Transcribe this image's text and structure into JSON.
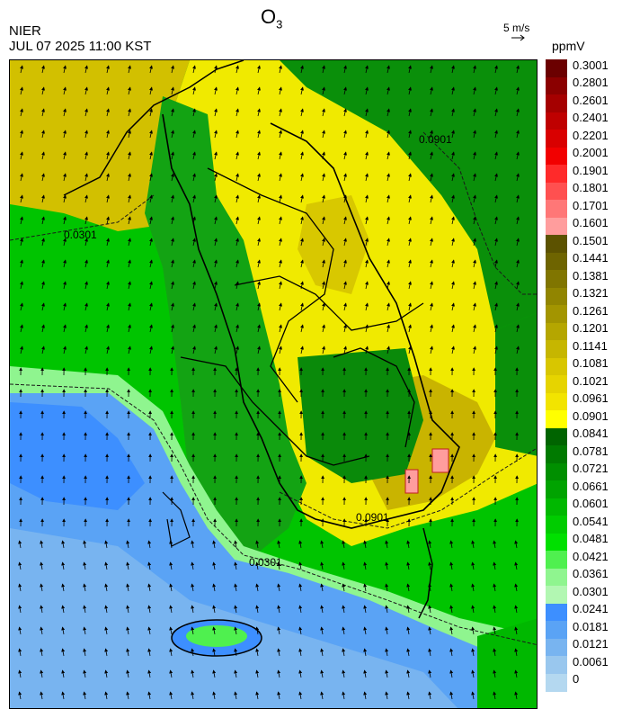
{
  "header": {
    "agency": "NIER",
    "timestamp": "JUL 07 2025 11:00 KST",
    "title_main": "O",
    "title_sub": "3",
    "wind_reference": "5 m/s",
    "unit": "ppmV"
  },
  "map": {
    "contour_label": "0.0901",
    "contour_label_alt": "0.0301",
    "wind_arrow_icon": "wind-arrow-icon"
  },
  "colorbar": {
    "labels": [
      "0.3001",
      "0.2801",
      "0.2601",
      "0.2401",
      "0.2201",
      "0.2001",
      "0.1901",
      "0.1801",
      "0.1701",
      "0.1601",
      "0.1501",
      "0.1441",
      "0.1381",
      "0.1321",
      "0.1261",
      "0.1201",
      "0.1141",
      "0.1081",
      "0.1021",
      "0.0961",
      "0.0901",
      "0.0841",
      "0.0781",
      "0.0721",
      "0.0661",
      "0.0601",
      "0.0541",
      "0.0481",
      "0.0421",
      "0.0361",
      "0.0301",
      "0.0241",
      "0.0181",
      "0.0121",
      "0.0061",
      "0"
    ],
    "colors": [
      "#6b0000",
      "#8b0000",
      "#a50000",
      "#bf0000",
      "#d90000",
      "#f20000",
      "#ff2a2a",
      "#ff5050",
      "#ff7777",
      "#ff9d9d",
      "#5c5200",
      "#6e6400",
      "#807500",
      "#918500",
      "#a39500",
      "#b5a600",
      "#c6b600",
      "#d8c600",
      "#e6d400",
      "#f2e400",
      "#ffff00",
      "#006400",
      "#007a00",
      "#008f00",
      "#00a300",
      "#00b800",
      "#00cc00",
      "#00e000",
      "#4ff04f",
      "#8ff58f",
      "#b2f7b2",
      "#3d8fff",
      "#5aa3f5",
      "#78b4f0",
      "#99c7ee",
      "#b4d8f0"
    ]
  }
}
